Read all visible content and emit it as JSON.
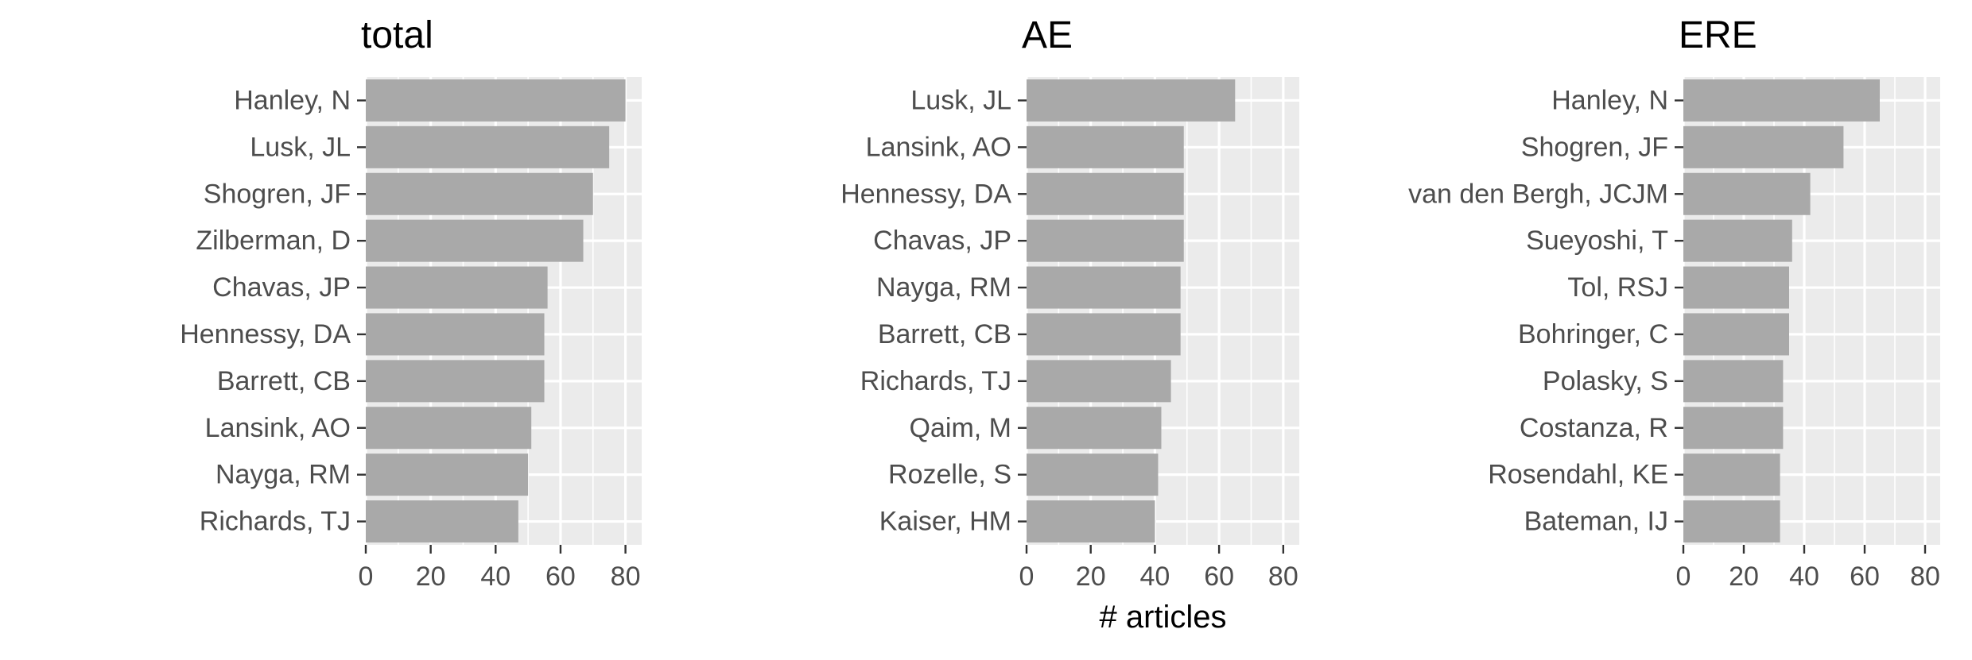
{
  "chart_data": [
    {
      "type": "bar",
      "orientation": "horizontal",
      "title": "total",
      "categories": [
        "Hanley, N",
        "Lusk, JL",
        "Shogren, JF",
        "Zilberman, D",
        "Chavas, JP",
        "Hennessy, DA",
        "Barrett, CB",
        "Lansink, AO",
        "Nayga, RM",
        "Richards, TJ"
      ],
      "values": [
        80,
        75,
        70,
        67,
        56,
        55,
        55,
        51,
        50,
        47
      ],
      "xlabel": "",
      "ylabel": "",
      "xlim": [
        0,
        85
      ],
      "xticks": [
        0,
        20,
        40,
        60,
        80
      ],
      "grid": true
    },
    {
      "type": "bar",
      "orientation": "horizontal",
      "title": "AE",
      "categories": [
        "Lusk, JL",
        "Lansink, AO",
        "Hennessy, DA",
        "Chavas, JP",
        "Nayga, RM",
        "Barrett, CB",
        "Richards, TJ",
        "Qaim, M",
        "Rozelle, S",
        "Kaiser, HM"
      ],
      "values": [
        65,
        49,
        49,
        49,
        48,
        48,
        45,
        42,
        41,
        40
      ],
      "xlabel": "# articles",
      "ylabel": "",
      "xlim": [
        0,
        85
      ],
      "xticks": [
        0,
        20,
        40,
        60,
        80
      ],
      "grid": true
    },
    {
      "type": "bar",
      "orientation": "horizontal",
      "title": "ERE",
      "categories": [
        "Hanley, N",
        "Shogren, JF",
        "van den Bergh, JCJM",
        "Sueyoshi, T",
        "Tol, RSJ",
        "Bohringer, C",
        "Polasky, S",
        "Costanza, R",
        "Rosendahl, KE",
        "Bateman, IJ"
      ],
      "values": [
        65,
        53,
        42,
        36,
        35,
        35,
        33,
        33,
        32,
        32
      ],
      "xlabel": "",
      "ylabel": "",
      "xlim": [
        0,
        85
      ],
      "xticks": [
        0,
        20,
        40,
        60,
        80
      ],
      "grid": true
    }
  ],
  "colors": {
    "panel_bg": "#EBEBEB",
    "grid": "#FFFFFF",
    "bar": "#A9A9A9",
    "tick": "#333333",
    "label": "#4D4D4D",
    "title": "#000000"
  }
}
